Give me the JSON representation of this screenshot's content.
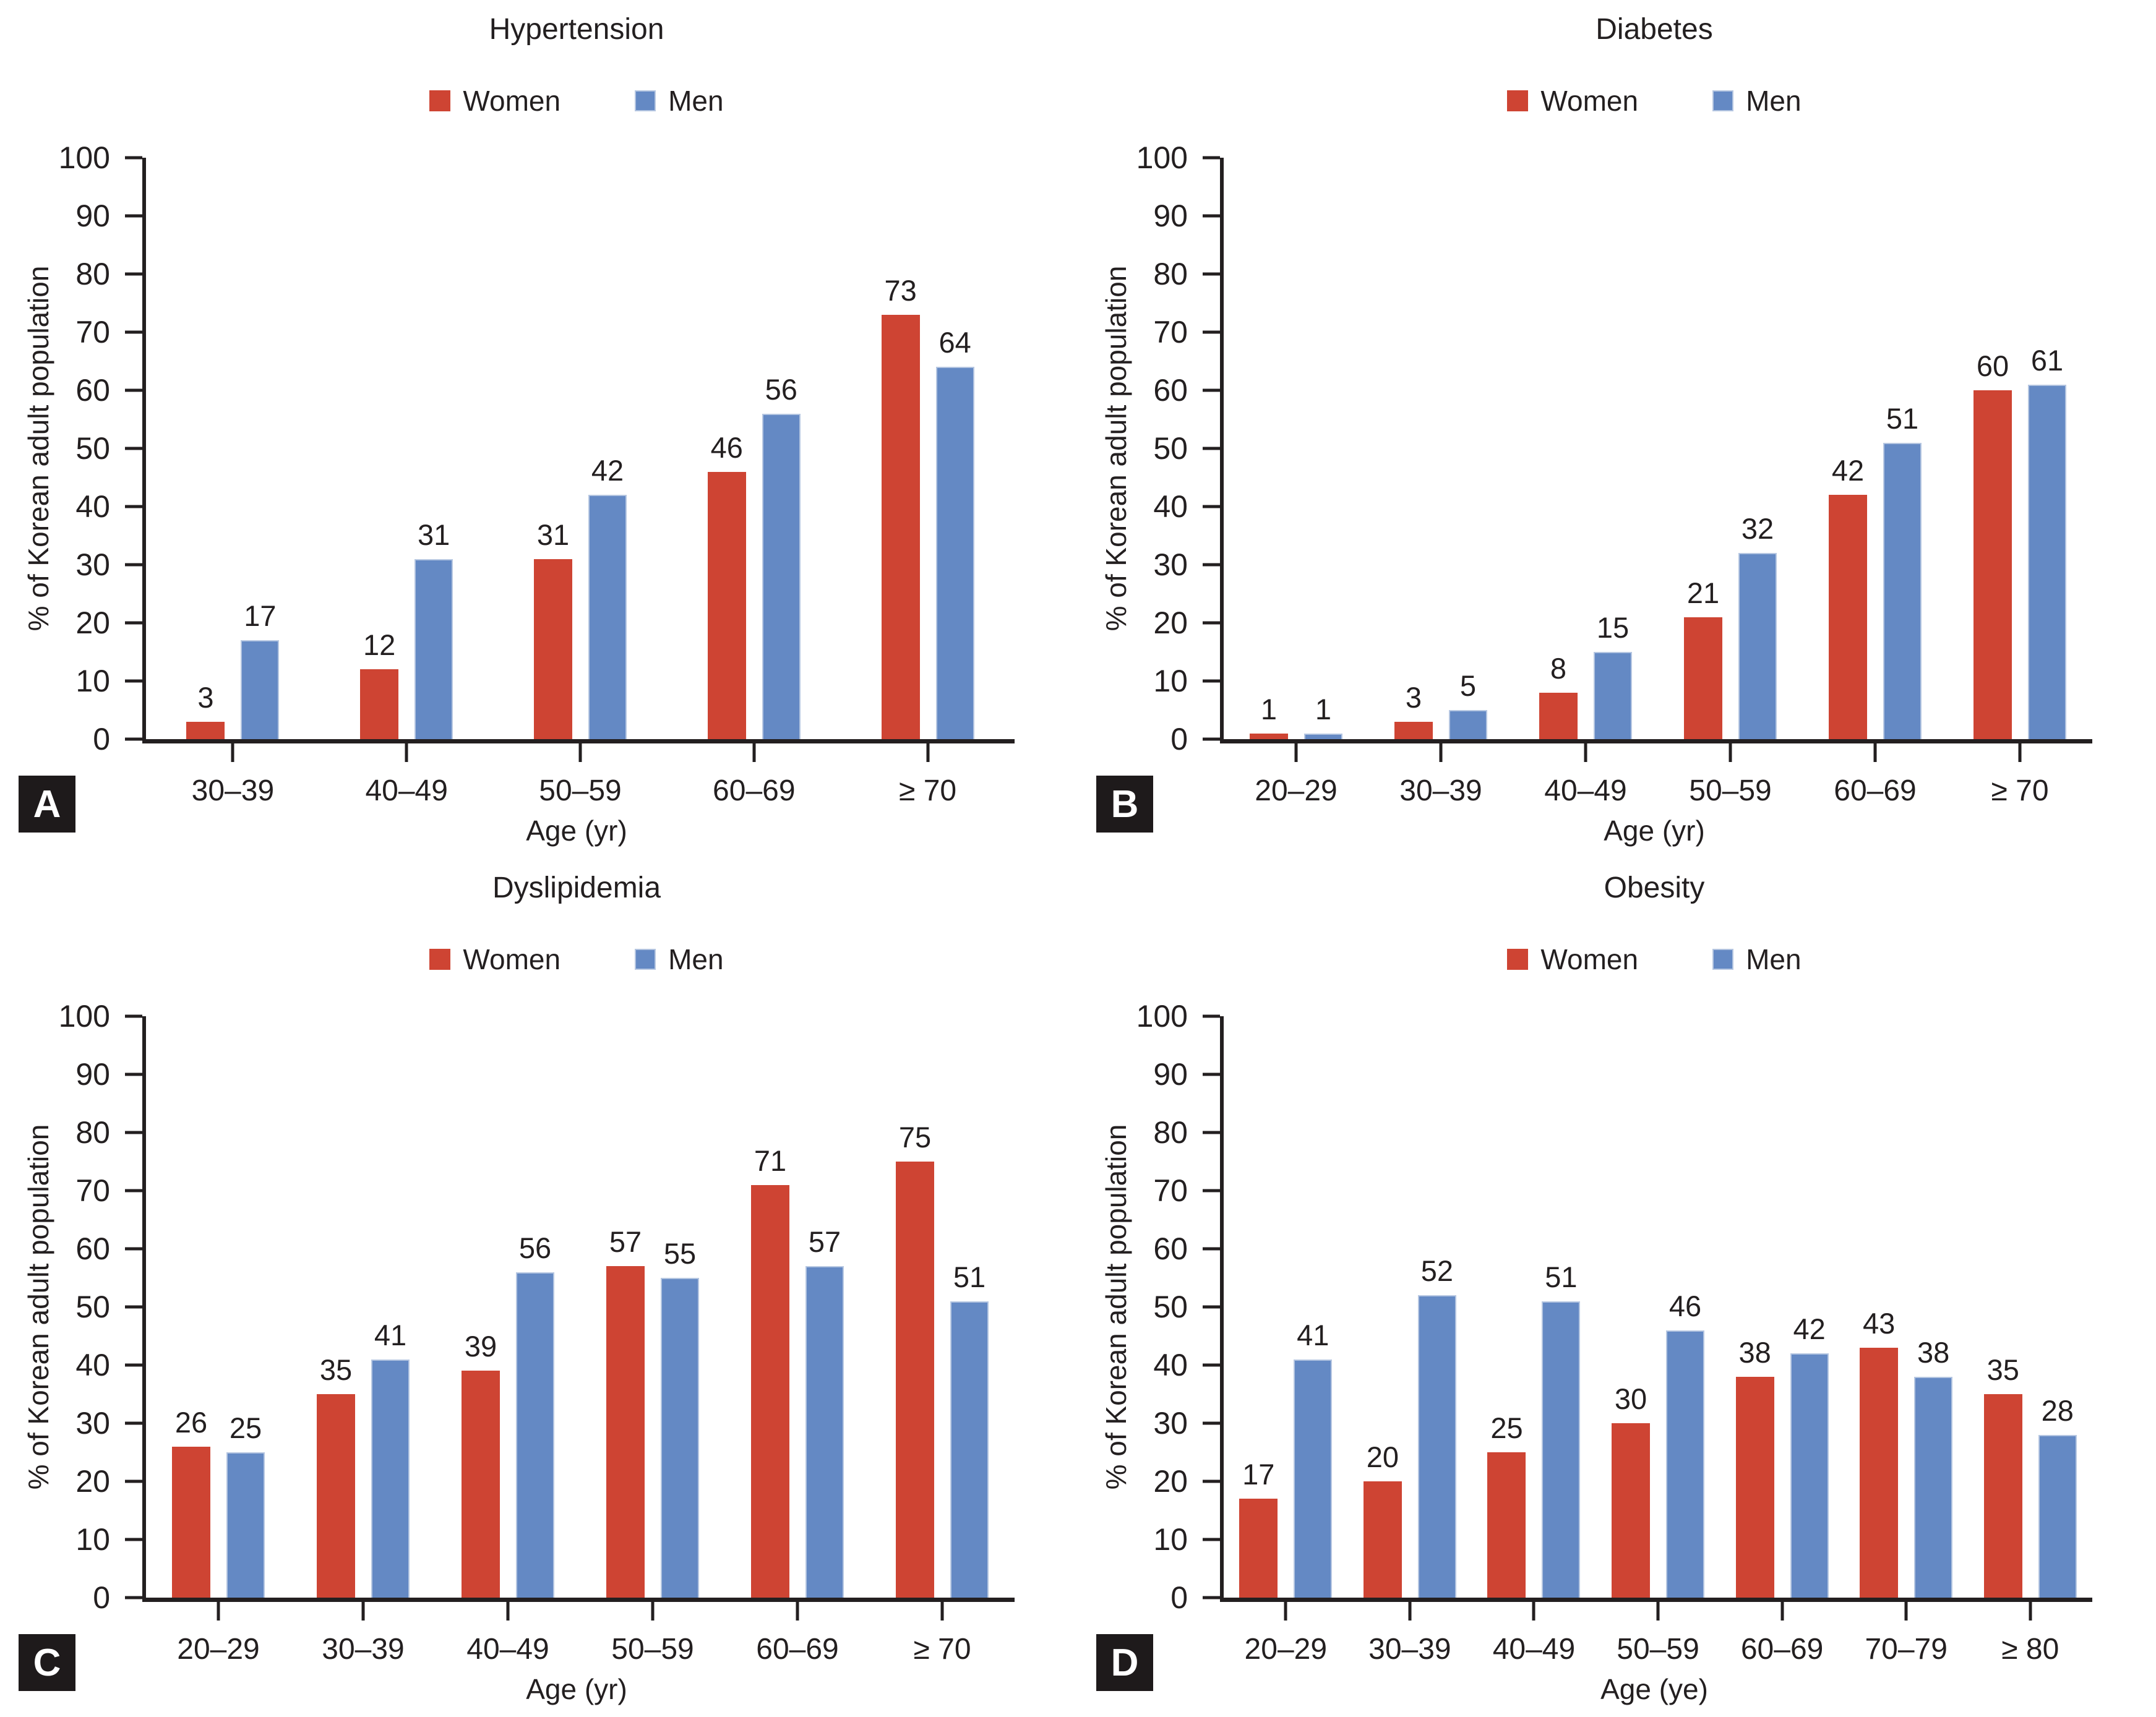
{
  "style": {
    "axis_color": "#231f20",
    "text_color": "#231f20",
    "background": "#ffffff",
    "women_color": "#ce4433",
    "men_color": "#6489c4",
    "men_bar_edge": "#b5c6e1",
    "badge_bg": "#1e1a1b",
    "badge_text": "#ffffff"
  },
  "chart_data": [
    {
      "type": "bar",
      "panel_label": "A",
      "title": "Hypertension",
      "xlabel": "Age (yr)",
      "ylabel": "% of Korean adult population",
      "ylim": [
        0,
        100
      ],
      "ytick_step": 10,
      "grid": false,
      "legend_position": "top-center",
      "categories": [
        "30–39",
        "40–49",
        "50–59",
        "60–69",
        "≥ 70"
      ],
      "series": [
        {
          "name": "Women",
          "color": "#ce4433",
          "values": [
            3,
            12,
            31,
            46,
            73
          ]
        },
        {
          "name": "Men",
          "color": "#6489c4",
          "values": [
            17,
            31,
            42,
            56,
            64
          ]
        }
      ]
    },
    {
      "type": "bar",
      "panel_label": "B",
      "title": "Diabetes",
      "xlabel": "Age (yr)",
      "ylabel": "% of Korean adult population",
      "ylim": [
        0,
        100
      ],
      "ytick_step": 10,
      "grid": false,
      "legend_position": "top-center",
      "categories": [
        "20–29",
        "30–39",
        "40–49",
        "50–59",
        "60–69",
        "≥ 70"
      ],
      "series": [
        {
          "name": "Women",
          "color": "#ce4433",
          "values": [
            1,
            3,
            8,
            21,
            42,
            60
          ]
        },
        {
          "name": "Men",
          "color": "#6489c4",
          "values": [
            1,
            5,
            15,
            32,
            51,
            61
          ]
        }
      ]
    },
    {
      "type": "bar",
      "panel_label": "C",
      "title": "Dyslipidemia",
      "xlabel": "Age (yr)",
      "ylabel": "% of Korean adult population",
      "ylim": [
        0,
        100
      ],
      "ytick_step": 10,
      "grid": false,
      "legend_position": "top-center",
      "categories": [
        "20–29",
        "30–39",
        "40–49",
        "50–59",
        "60–69",
        "≥ 70"
      ],
      "series": [
        {
          "name": "Women",
          "color": "#ce4433",
          "values": [
            26,
            35,
            39,
            57,
            71,
            75
          ]
        },
        {
          "name": "Men",
          "color": "#6489c4",
          "values": [
            25,
            41,
            56,
            55,
            57,
            51
          ]
        }
      ]
    },
    {
      "type": "bar",
      "panel_label": "D",
      "title": "Obesity",
      "xlabel": "Age (ye)",
      "ylabel": "% of Korean adult population",
      "ylim": [
        0,
        100
      ],
      "ytick_step": 10,
      "grid": false,
      "legend_position": "top-center",
      "categories": [
        "20–29",
        "30–39",
        "40–49",
        "50–59",
        "60–69",
        "70–79",
        "≥ 80"
      ],
      "series": [
        {
          "name": "Women",
          "color": "#ce4433",
          "values": [
            17,
            20,
            25,
            30,
            38,
            43,
            35
          ]
        },
        {
          "name": "Men",
          "color": "#6489c4",
          "values": [
            41,
            52,
            51,
            46,
            42,
            38,
            28
          ]
        }
      ]
    }
  ]
}
